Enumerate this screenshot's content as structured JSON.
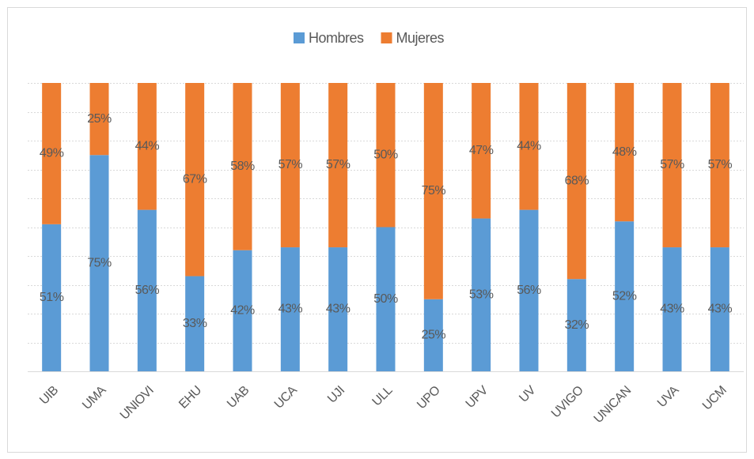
{
  "chart_data": {
    "type": "stacked_bar",
    "categories": [
      "UIB",
      "UMA",
      "UNIOVI",
      "EHU",
      "UAB",
      "UCA",
      "UJI",
      "ULL",
      "UPO",
      "UPV",
      "UV",
      "UVIGO",
      "UNICAN",
      "UVA",
      "UCM"
    ],
    "series": [
      {
        "name": "Hombres",
        "color": "#5b9bd5",
        "values": [
          51,
          75,
          56,
          33,
          42,
          43,
          43,
          50,
          25,
          53,
          56,
          32,
          52,
          43,
          43
        ],
        "value_labels": [
          "51%",
          "75%",
          "56%",
          "33%",
          "42%",
          "43%",
          "43%",
          "50%",
          "25%",
          "53%",
          "56%",
          "32%",
          "52%",
          "43%",
          "43%"
        ]
      },
      {
        "name": "Mujeres",
        "color": "#ed7d31",
        "values": [
          49,
          25,
          44,
          67,
          58,
          57,
          57,
          50,
          75,
          47,
          44,
          68,
          48,
          57,
          57
        ],
        "value_labels": [
          "49%",
          "25%",
          "44%",
          "67%",
          "58%",
          "57%",
          "57%",
          "50%",
          "75%",
          "47%",
          "44%",
          "68%",
          "48%",
          "57%",
          "57%"
        ]
      }
    ],
    "ylim": [
      0,
      100
    ],
    "yticks": [
      0,
      10,
      20,
      30,
      40,
      50,
      60,
      70,
      80,
      90,
      100
    ],
    "grid": true,
    "legend": "top"
  }
}
